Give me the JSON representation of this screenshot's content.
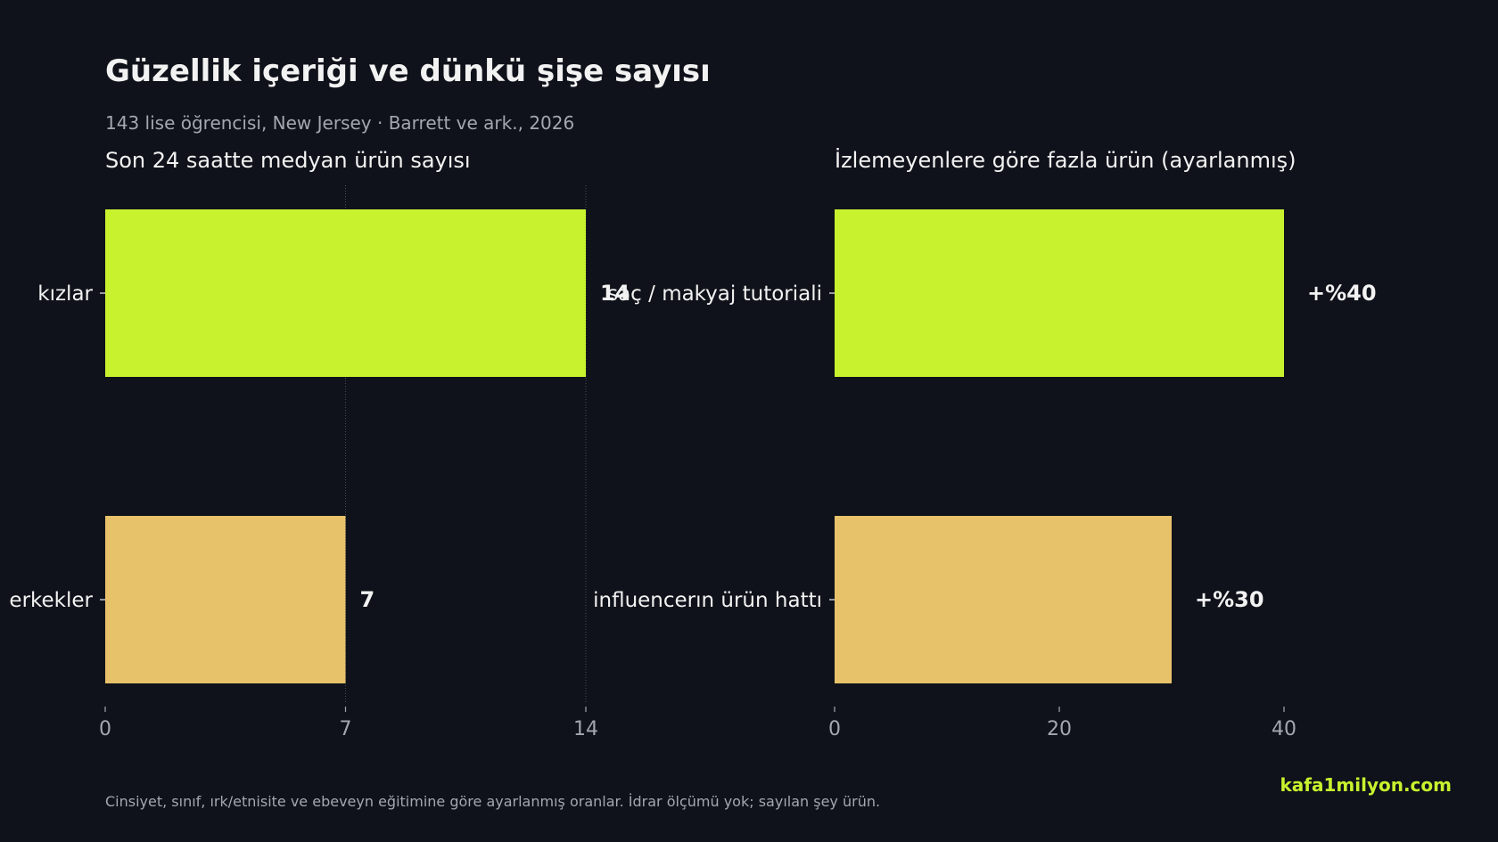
{
  "header": {
    "title": "Güzellik içeriği ve dünkü şişe sayısı",
    "subtitle": "143 lise öğrencisi, New Jersey · Barrett ve ark., 2026"
  },
  "footer": {
    "note": "Cinsiyet, sınıf, ırk/etnisite ve ebeveyn eğitimine göre ayarlanmış oranlar. İdrar ölçümü yok; sayılan şey ürün.",
    "brand": "kafa1milyon.com"
  },
  "colors": {
    "background": "#0f121a",
    "primary_bar": "#c8f22e",
    "secondary_bar": "#e8c26b",
    "text": "#f2f2f2",
    "muted_text": "#a3a7b0",
    "grid": "#4a4f5a"
  },
  "chart_data": [
    {
      "type": "bar",
      "orientation": "horizontal",
      "title": "Son 24 saatte medyan ürün sayısı",
      "categories": [
        "kızlar",
        "erkekler"
      ],
      "values": [
        14,
        7
      ],
      "value_labels": [
        "14",
        "7"
      ],
      "xlim": [
        0,
        14
      ],
      "xticks": [
        0,
        7,
        14
      ],
      "xtick_labels": [
        "0",
        "7",
        "14"
      ],
      "grid": true
    },
    {
      "type": "bar",
      "orientation": "horizontal",
      "title": "İzlemeyenlere göre fazla ürün (ayarlanmış)",
      "categories": [
        "saç / makyaj tutoriali",
        "influencerın ürün hattı"
      ],
      "values": [
        40,
        30
      ],
      "value_labels": [
        "+%40",
        "+%30"
      ],
      "xlim": [
        0,
        40
      ],
      "xticks": [
        0,
        20,
        40
      ],
      "xtick_labels": [
        "0",
        "20",
        "40"
      ],
      "grid": false
    }
  ]
}
